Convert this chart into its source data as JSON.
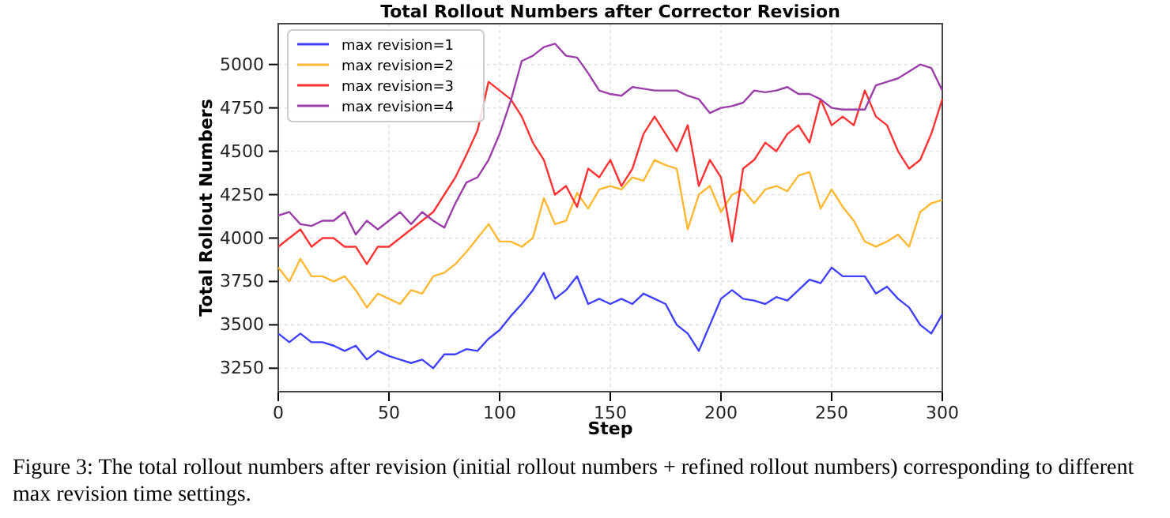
{
  "chart_data": {
    "type": "line",
    "title": "Total Rollout Numbers after Corrector Revision",
    "xlabel": "Step",
    "ylabel": "Total Rollout Numbers",
    "x": [
      0,
      5,
      10,
      15,
      20,
      25,
      30,
      35,
      40,
      45,
      50,
      55,
      60,
      65,
      70,
      75,
      80,
      85,
      90,
      95,
      100,
      105,
      110,
      115,
      120,
      125,
      130,
      135,
      140,
      145,
      150,
      155,
      160,
      165,
      170,
      175,
      180,
      185,
      190,
      195,
      200,
      205,
      210,
      215,
      220,
      225,
      230,
      235,
      240,
      245,
      250,
      255,
      260,
      265,
      270,
      275,
      280,
      285,
      290,
      295,
      300
    ],
    "series": [
      {
        "name": "max revision=1",
        "color": "#4040ff",
        "values": [
          3450,
          3400,
          3450,
          3400,
          3400,
          3380,
          3350,
          3380,
          3300,
          3350,
          3320,
          3300,
          3280,
          3300,
          3250,
          3330,
          3330,
          3360,
          3350,
          3420,
          3470,
          3550,
          3620,
          3700,
          3800,
          3650,
          3700,
          3780,
          3620,
          3650,
          3620,
          3650,
          3620,
          3680,
          3650,
          3620,
          3500,
          3450,
          3350,
          3500,
          3650,
          3700,
          3650,
          3640,
          3620,
          3660,
          3640,
          3700,
          3760,
          3740,
          3830,
          3780,
          3780,
          3780,
          3680,
          3720,
          3650,
          3600,
          3500,
          3450,
          3560
        ]
      },
      {
        "name": "max revision=2",
        "color": "#ffb833",
        "values": [
          3830,
          3750,
          3880,
          3780,
          3780,
          3750,
          3780,
          3700,
          3600,
          3680,
          3650,
          3620,
          3700,
          3680,
          3780,
          3800,
          3850,
          3920,
          4000,
          4080,
          3980,
          3980,
          3950,
          4000,
          4230,
          4080,
          4100,
          4260,
          4170,
          4280,
          4300,
          4280,
          4350,
          4330,
          4450,
          4420,
          4400,
          4050,
          4250,
          4300,
          4150,
          4250,
          4280,
          4200,
          4280,
          4300,
          4270,
          4360,
          4380,
          4170,
          4280,
          4180,
          4100,
          3980,
          3950,
          3980,
          4020,
          3950,
          4150,
          4200,
          4220
        ]
      },
      {
        "name": "max revision=3",
        "color": "#ff3333",
        "values": [
          3950,
          4000,
          4050,
          3950,
          4000,
          4000,
          3950,
          3950,
          3850,
          3950,
          3950,
          4000,
          4050,
          4100,
          4150,
          4250,
          4350,
          4480,
          4620,
          4900,
          4850,
          4800,
          4700,
          4550,
          4450,
          4250,
          4300,
          4180,
          4400,
          4350,
          4450,
          4300,
          4400,
          4600,
          4700,
          4600,
          4500,
          4650,
          4300,
          4450,
          4350,
          3980,
          4400,
          4450,
          4550,
          4500,
          4600,
          4650,
          4550,
          4800,
          4650,
          4700,
          4650,
          4850,
          4700,
          4650,
          4500,
          4400,
          4450,
          4600,
          4800
        ]
      },
      {
        "name": "max revision=4",
        "color": "#9b3fa8",
        "values": [
          4130,
          4150,
          4080,
          4070,
          4100,
          4100,
          4150,
          4020,
          4100,
          4050,
          4100,
          4150,
          4080,
          4150,
          4100,
          4060,
          4200,
          4320,
          4350,
          4450,
          4600,
          4790,
          5020,
          5050,
          5100,
          5120,
          5050,
          5040,
          4950,
          4850,
          4830,
          4820,
          4870,
          4860,
          4850,
          4850,
          4850,
          4820,
          4800,
          4720,
          4750,
          4760,
          4780,
          4850,
          4840,
          4850,
          4870,
          4830,
          4830,
          4800,
          4750,
          4740,
          4740,
          4740,
          4880,
          4900,
          4920,
          4960,
          5000,
          4980,
          4850
        ]
      }
    ],
    "xlim": [
      0,
      300
    ],
    "xticks": [
      0,
      50,
      100,
      150,
      200,
      250,
      300
    ],
    "ylim": [
      3115,
      5235
    ],
    "yticks": [
      3250,
      3500,
      3750,
      4000,
      4250,
      4500,
      4750,
      5000
    ],
    "grid": true,
    "legend": "top left",
    "line_style": "solid",
    "marker": "none",
    "annotations": [
      "Figure 3: The total rollout numbers after revision (initial rollout numbers + refined rollout numbers) corresponding to different max revision time settings."
    ]
  }
}
